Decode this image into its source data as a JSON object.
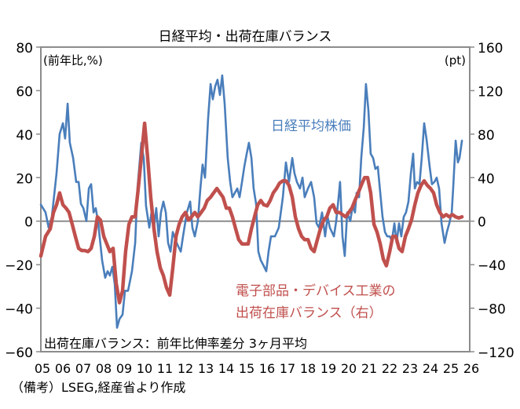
{
  "chart_data": {
    "type": "line",
    "title": "日経平均・出荷在庫バランス",
    "left_unit_label": "(前年比,%)",
    "right_unit_label": "(pt)",
    "ylim_left": [
      -60,
      80
    ],
    "ylim_right": [
      -120,
      160
    ],
    "yticks_left": [
      "80",
      "60",
      "40",
      "20",
      "0",
      "-20",
      "-40",
      "-60"
    ],
    "yticks_right": [
      "160",
      "120",
      "80",
      "40",
      "0",
      "-40",
      "-80",
      "-120"
    ],
    "xlim": [
      2005,
      2026
    ],
    "xticks": [
      "05",
      "06",
      "07",
      "08",
      "09",
      "10",
      "11",
      "12",
      "13",
      "14",
      "15",
      "16",
      "17",
      "18",
      "19",
      "20",
      "21",
      "22",
      "23",
      "24",
      "25",
      "26"
    ],
    "note": "出荷在庫バランス：前年比伸率差分 3ヶ月平均",
    "source": "（備考）LSEG,経産省より作成",
    "series": [
      {
        "name": "日経平均株価",
        "axis": "left",
        "color": "#4a7ebb",
        "x": [
          2005.0,
          2005.23,
          2005.38,
          2005.54,
          2005.77,
          2005.92,
          2006.08,
          2006.19,
          2006.31,
          2006.42,
          2006.58,
          2006.73,
          2006.85,
          2006.96,
          2007.08,
          2007.23,
          2007.35,
          2007.46,
          2007.58,
          2007.69,
          2007.81,
          2008.0,
          2008.15,
          2008.27,
          2008.38,
          2008.5,
          2008.62,
          2008.73,
          2008.85,
          2009.0,
          2009.12,
          2009.27,
          2009.46,
          2009.62,
          2009.73,
          2009.92,
          2010.04,
          2010.15,
          2010.31,
          2010.42,
          2010.54,
          2010.65,
          2010.77,
          2010.88,
          2011.0,
          2011.12,
          2011.23,
          2011.35,
          2011.46,
          2011.65,
          2011.85,
          2011.96,
          2012.15,
          2012.31,
          2012.42,
          2012.54,
          2012.69,
          2012.81,
          2012.92,
          2013.04,
          2013.19,
          2013.31,
          2013.42,
          2013.54,
          2013.65,
          2013.77,
          2013.88,
          2014.0,
          2014.15,
          2014.27,
          2014.38,
          2014.5,
          2014.62,
          2014.73,
          2014.85,
          2014.96,
          2015.08,
          2015.19,
          2015.31,
          2015.42,
          2015.54,
          2015.65,
          2015.77,
          2015.88,
          2016.04,
          2016.15,
          2016.27,
          2016.46,
          2016.65,
          2016.85,
          2017.0,
          2017.15,
          2017.31,
          2017.42,
          2017.54,
          2017.69,
          2017.81,
          2017.92,
          2018.08,
          2018.23,
          2018.38,
          2018.5,
          2018.62,
          2018.77,
          2018.92,
          2019.04,
          2019.15,
          2019.35,
          2019.46,
          2019.58,
          2019.65,
          2019.77,
          2019.88,
          2020.0,
          2020.15,
          2020.27,
          2020.38,
          2020.46,
          2020.58,
          2020.69,
          2020.81,
          2020.92,
          2021.04,
          2021.15,
          2021.27,
          2021.38,
          2021.5,
          2021.62,
          2021.73,
          2021.85,
          2021.96,
          2022.08,
          2022.19,
          2022.31,
          2022.42,
          2022.54,
          2022.65,
          2022.77,
          2022.88,
          2023.0,
          2023.12,
          2023.23,
          2023.31,
          2023.42,
          2023.54,
          2023.65,
          2023.77,
          2023.88,
          2024.04,
          2024.15,
          2024.27,
          2024.38,
          2024.5,
          2024.62,
          2024.77,
          2024.88,
          2025.0,
          2025.12,
          2025.19,
          2025.31,
          2025.42,
          2025.5,
          2025.62
        ],
        "values": [
          7.6,
          4,
          -3,
          2,
          22,
          40,
          45,
          38,
          54,
          36,
          29,
          18,
          18,
          8,
          6,
          0,
          15,
          17,
          4,
          6,
          -1,
          -18,
          -26,
          -23,
          -25,
          -21,
          -29,
          -49,
          -45,
          -43,
          -32,
          -32,
          -23,
          -10,
          15,
          36,
          29,
          7,
          -3,
          4,
          -3,
          6,
          -7,
          4,
          9,
          4,
          -10,
          -14,
          -5,
          -10,
          -14,
          -7,
          4,
          9,
          -3,
          -7,
          0,
          15,
          26,
          20,
          47,
          63,
          56,
          62,
          65,
          58,
          67,
          54,
          29,
          18,
          11,
          13,
          15,
          11,
          18,
          25,
          31,
          36,
          29,
          15,
          8,
          -14,
          -18,
          -20,
          -23,
          -14,
          -7,
          -7,
          -3,
          11,
          27,
          18,
          29,
          22,
          18,
          15,
          20,
          11,
          15,
          18,
          11,
          -1,
          -3,
          4,
          -7,
          2,
          -3,
          -7,
          0,
          11,
          18,
          -7,
          -16,
          4,
          0,
          7,
          4,
          13,
          11,
          29,
          43,
          63,
          51,
          31,
          29,
          24,
          25,
          13,
          2,
          -5,
          -7,
          -7,
          -9,
          -1,
          -10,
          -1,
          -7,
          2,
          4,
          9,
          22,
          31,
          15,
          18,
          17,
          29,
          45,
          38,
          25,
          17,
          18,
          20,
          15,
          -1,
          -10,
          -5,
          -1,
          4,
          15,
          37,
          27,
          29,
          37
        ]
      },
      {
        "name": "電子部品・デバイス工業の出荷在庫バランス（右）",
        "label_lines": [
          "電子部品・デバイス工業の",
          "出荷在庫バランス（右）"
        ],
        "axis": "right",
        "color": "#c0504d",
        "x": [
          2005.0,
          2005.23,
          2005.46,
          2005.62,
          2005.77,
          2005.92,
          2006.08,
          2006.23,
          2006.38,
          2006.54,
          2006.69,
          2006.85,
          2007.0,
          2007.15,
          2007.31,
          2007.46,
          2007.62,
          2007.77,
          2007.92,
          2008.08,
          2008.23,
          2008.38,
          2008.54,
          2008.69,
          2008.85,
          2009.0,
          2009.15,
          2009.31,
          2009.46,
          2009.62,
          2009.77,
          2009.92,
          2010.08,
          2010.23,
          2010.38,
          2010.54,
          2010.69,
          2010.85,
          2011.0,
          2011.15,
          2011.31,
          2011.46,
          2011.62,
          2011.77,
          2011.92,
          2012.08,
          2012.23,
          2012.38,
          2012.54,
          2012.69,
          2012.85,
          2013.0,
          2013.15,
          2013.31,
          2013.46,
          2013.62,
          2013.77,
          2013.92,
          2014.08,
          2014.23,
          2014.38,
          2014.54,
          2014.69,
          2014.85,
          2015.0,
          2015.15,
          2015.31,
          2015.46,
          2015.62,
          2015.77,
          2015.92,
          2016.08,
          2016.23,
          2016.38,
          2016.54,
          2016.69,
          2016.85,
          2017.0,
          2017.15,
          2017.31,
          2017.46,
          2017.62,
          2017.77,
          2017.92,
          2018.08,
          2018.23,
          2018.38,
          2018.54,
          2018.69,
          2018.85,
          2019.0,
          2019.15,
          2019.31,
          2019.46,
          2019.62,
          2019.77,
          2019.92,
          2020.08,
          2020.23,
          2020.38,
          2020.54,
          2020.69,
          2020.85,
          2021.0,
          2021.15,
          2021.31,
          2021.46,
          2021.62,
          2021.77,
          2021.92,
          2022.08,
          2022.23,
          2022.38,
          2022.54,
          2022.69,
          2022.85,
          2023.0,
          2023.15,
          2023.31,
          2023.46,
          2023.62,
          2023.77,
          2023.92,
          2024.08,
          2024.23,
          2024.38,
          2024.54,
          2024.69,
          2024.85,
          2025.0,
          2025.15,
          2025.31,
          2025.46,
          2025.62
        ],
        "values": [
          -32,
          -14,
          -7,
          8,
          15,
          26,
          15,
          12,
          8,
          -3,
          -14,
          -25,
          -27,
          -27,
          -28,
          -25,
          -14,
          4,
          1,
          -14,
          -21,
          -28,
          -25,
          -57,
          -75,
          -64,
          -28,
          -3,
          4,
          4,
          30,
          58,
          90,
          58,
          22,
          -7,
          -28,
          -43,
          -50,
          -61,
          -68,
          -43,
          -14,
          -3,
          4,
          8,
          1,
          4,
          8,
          4,
          8,
          12,
          19,
          22,
          26,
          30,
          26,
          22,
          12,
          12,
          4,
          -7,
          -17,
          -21,
          -21,
          -21,
          -7,
          4,
          15,
          19,
          15,
          14,
          19,
          26,
          30,
          35,
          37,
          37,
          33,
          22,
          4,
          -7,
          -14,
          -17,
          -17,
          -25,
          -28,
          -17,
          -7,
          1,
          4,
          12,
          15,
          8,
          8,
          6,
          4,
          8,
          12,
          19,
          26,
          33,
          40,
          40,
          26,
          -3,
          -10,
          -21,
          -35,
          -41,
          -28,
          -14,
          -14,
          -25,
          -28,
          -14,
          -7,
          1,
          15,
          26,
          33,
          37,
          33,
          30,
          26,
          15,
          8,
          4,
          6,
          4,
          6,
          4,
          3,
          4
        ]
      }
    ]
  }
}
